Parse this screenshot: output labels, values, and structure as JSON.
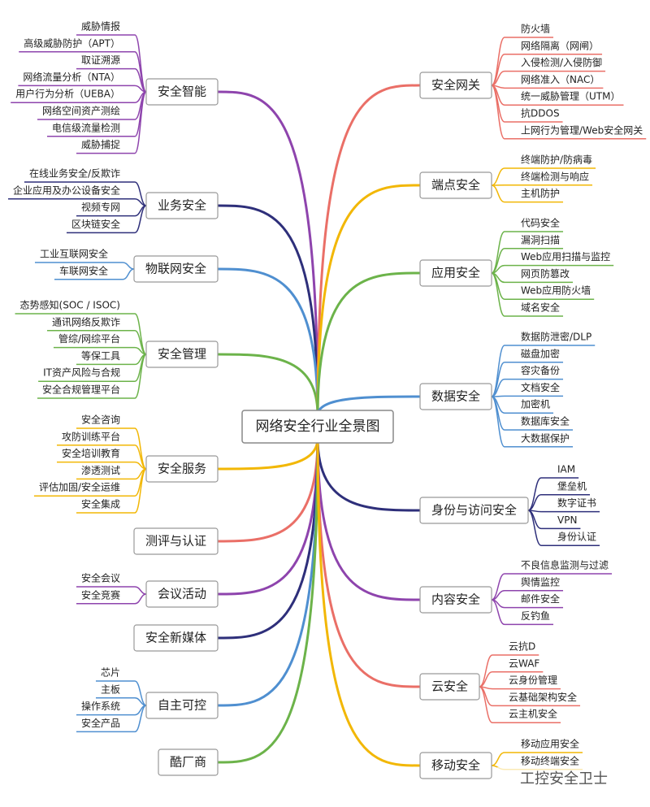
{
  "title": "网络安全行业全景图",
  "left_branches": [
    {
      "label": "安全智能",
      "color": "#8e44ad",
      "children": [
        "威胁情报",
        "高级威胁防护（APT）",
        "取证溯源",
        "网络流量分析（NTA）",
        "用户行为分析（UEBA）",
        "网络空间资产测绘",
        "电信级流量检测",
        "威胁捕捉"
      ]
    },
    {
      "label": "业务安全",
      "color": "#2e2f7a",
      "children": [
        "在线业务安全/反欺诈",
        "企业应用及办公设备安全",
        "视频专网",
        "区块链安全"
      ]
    },
    {
      "label": "物联网安全",
      "color": "#4f8fd0",
      "children": [
        "工业互联网安全",
        "车联网安全"
      ]
    },
    {
      "label": "安全管理",
      "color": "#6cb34a",
      "children": [
        "态势感知(SOC / ISOC)",
        "通讯网络反欺诈",
        "管综/网综平台",
        "等保工具",
        "IT资产风险与合规",
        "安全合规管理平台"
      ]
    },
    {
      "label": "安全服务",
      "color": "#f2b705",
      "children": [
        "安全咨询",
        "攻防训练平台",
        "安全培训教育",
        "渗透测试",
        "评估加固/安全运维",
        "安全集成"
      ]
    },
    {
      "label": "测评与认证",
      "color": "#ea6f67",
      "children": []
    },
    {
      "label": "会议活动",
      "color": "#8e44ad",
      "children": [
        "安全会议",
        "安全竞赛"
      ]
    },
    {
      "label": "安全新媒体",
      "color": "#2e2f7a",
      "children": []
    },
    {
      "label": "自主可控",
      "color": "#4f8fd0",
      "children": [
        "芯片",
        "主板",
        "操作系统",
        "安全产品"
      ]
    },
    {
      "label": "酷厂商",
      "color": "#6cb34a",
      "children": []
    }
  ],
  "right_branches": [
    {
      "label": "安全网关",
      "color": "#ea6f67",
      "children": [
        "防火墙",
        "网络隔离（网闸）",
        "入侵检测/入侵防御",
        "网络准入（NAC）",
        "统一威胁管理（UTM）",
        "抗DDOS",
        "上网行为管理/Web安全网关"
      ]
    },
    {
      "label": "端点安全",
      "color": "#f2b705",
      "children": [
        "终端防护/防病毒",
        "终端检测与响应",
        "主机防护"
      ]
    },
    {
      "label": "应用安全",
      "color": "#6cb34a",
      "children": [
        "代码安全",
        "漏洞扫描",
        "Web应用扫描与监控",
        "网页防篡改",
        "Web应用防火墙",
        "域名安全"
      ]
    },
    {
      "label": "数据安全",
      "color": "#4f8fd0",
      "children": [
        "数据防泄密/DLP",
        "磁盘加密",
        "容灾备份",
        "文档安全",
        "加密机",
        "数据库安全",
        "大数据保护"
      ]
    },
    {
      "label": "身份与访问安全",
      "color": "#2e2f7a",
      "children": [
        "IAM",
        "堡垒机",
        "数字证书",
        "VPN",
        "身份认证"
      ]
    },
    {
      "label": "内容安全",
      "color": "#8e44ad",
      "children": [
        "不良信息监测与过滤",
        "舆情监控",
        "邮件安全",
        "反钓鱼"
      ]
    },
    {
      "label": "云安全",
      "color": "#ea6f67",
      "children": [
        "云抗D",
        "云WAF",
        "云身份管理",
        "云基础架构安全",
        "云主机安全"
      ]
    },
    {
      "label": "移动安全",
      "color": "#f2b705",
      "children": [
        "移动应用安全",
        "移动终端安全"
      ]
    }
  ],
  "watermark": "工控安全卫士"
}
